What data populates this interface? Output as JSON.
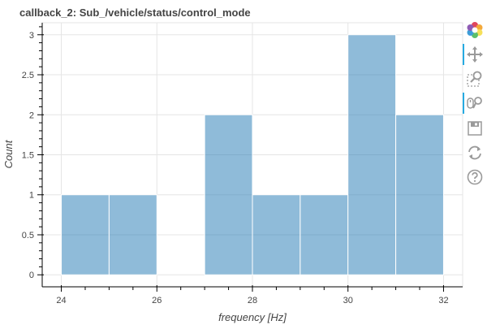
{
  "chart_data": {
    "type": "bar",
    "title": "callback_2: Sub_/vehicle/status/control_mode",
    "xlabel": "frequency [Hz]",
    "ylabel": "Count",
    "xlim": [
      23.6,
      32.4
    ],
    "ylim": [
      -0.15,
      3.15
    ],
    "x_ticks": [
      24,
      26,
      28,
      30,
      32
    ],
    "y_ticks": [
      0,
      0.5,
      1,
      1.5,
      2,
      2.5,
      3
    ],
    "y_tick_labels": [
      "0",
      "0.5",
      "1",
      "1.5",
      "2",
      "2.5",
      "3"
    ],
    "bins": [
      {
        "left": 24,
        "right": 25,
        "count": 1
      },
      {
        "left": 25,
        "right": 26,
        "count": 1
      },
      {
        "left": 26,
        "right": 27,
        "count": 0
      },
      {
        "left": 27,
        "right": 28,
        "count": 2
      },
      {
        "left": 28,
        "right": 29,
        "count": 1
      },
      {
        "left": 29,
        "right": 30,
        "count": 1
      },
      {
        "left": 30,
        "right": 31,
        "count": 3
      },
      {
        "left": 31,
        "right": 32,
        "count": 2
      }
    ],
    "bar_color": "#1f77b4",
    "grid": true
  },
  "toolbar": {
    "tools": [
      {
        "name": "bokeh-logo",
        "icon": "bokeh-logo-icon",
        "active": false
      },
      {
        "name": "pan",
        "icon": "pan-icon",
        "active": true
      },
      {
        "name": "box-zoom",
        "icon": "box-zoom-icon",
        "active": false
      },
      {
        "name": "wheel-zoom",
        "icon": "wheel-zoom-icon",
        "active": true
      },
      {
        "name": "save",
        "icon": "save-icon",
        "active": false
      },
      {
        "name": "reset",
        "icon": "reset-icon",
        "active": false
      },
      {
        "name": "help",
        "icon": "help-icon",
        "active": false
      }
    ]
  }
}
